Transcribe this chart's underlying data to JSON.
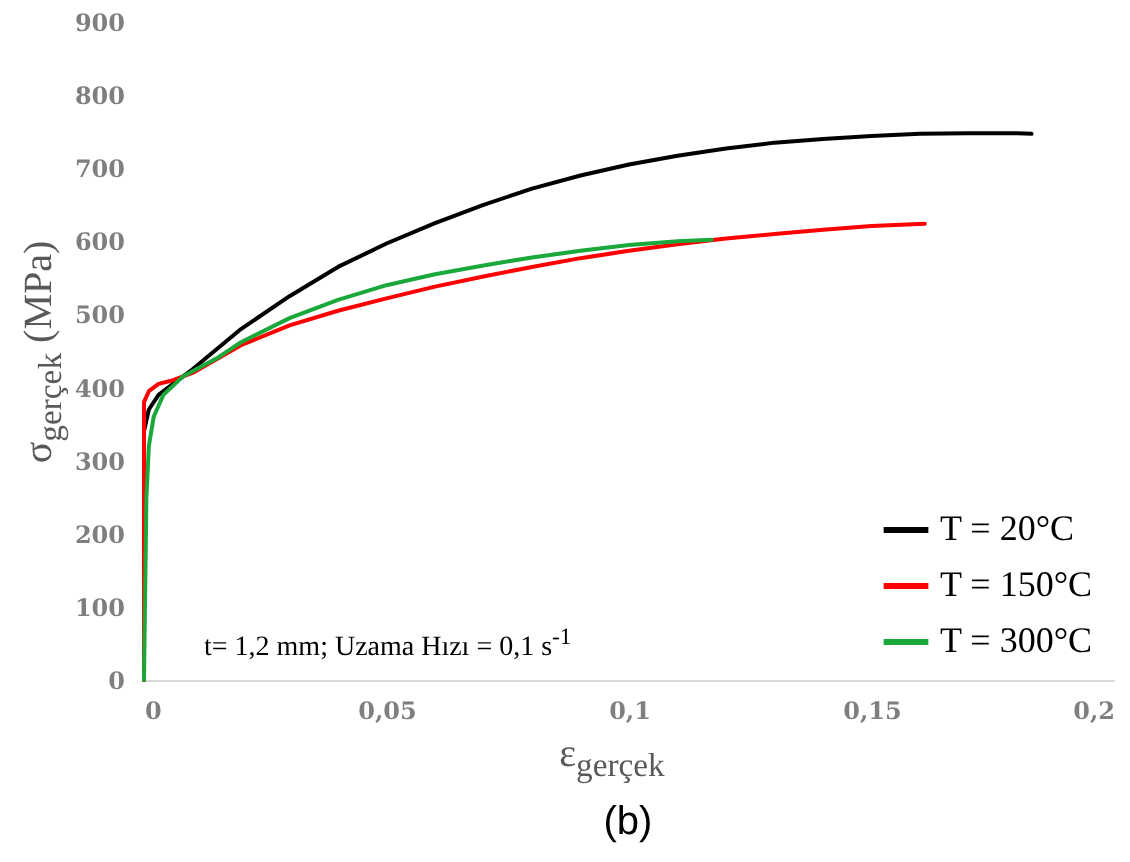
{
  "chart_data": {
    "type": "line",
    "xlabel": "ε$_{gerçek}$",
    "ylabel": "σ$_{gerçek}$ (MPa)",
    "annotations": [
      "t= 1,2 mm; Uzama Hızı = 0,1 s$^{-1}$",
      "(b)"
    ],
    "xlim": [
      0,
      0.2
    ],
    "xticks": [
      0,
      {
        "value": 0.05,
        "label": "0,05"
      },
      {
        "value": 0.1,
        "label": "0,1"
      },
      {
        "value": 0.15,
        "label": "0,15"
      },
      {
        "value": 0.2,
        "label": "0,2"
      }
    ],
    "ylim": [
      0,
      900
    ],
    "yticks": [
      0,
      100,
      200,
      300,
      400,
      500,
      600,
      700,
      800,
      900
    ],
    "grid": false,
    "legend": "bottom right",
    "marker": "none",
    "line_style": "solid",
    "series": [
      {
        "name": "T =   20°C",
        "color": "#000000",
        "x": [
          0,
          0,
          0.001,
          0.003,
          0.006,
          0.01,
          0.02,
          0.03,
          0.04,
          0.05,
          0.06,
          0.07,
          0.08,
          0.09,
          0.1,
          0.11,
          0.12,
          0.13,
          0.14,
          0.15,
          0.16,
          0.17,
          0.18,
          0.183
        ],
        "values": [
          0,
          340,
          370,
          390,
          405,
          425,
          480,
          525,
          565,
          597,
          625,
          650,
          672,
          690,
          705,
          717,
          727,
          735,
          740,
          744,
          747,
          748,
          748,
          747
        ]
      },
      {
        "name": "T = 150°C",
        "color": "#ff0000",
        "x": [
          0,
          0,
          0.001,
          0.003,
          0.006,
          0.01,
          0.02,
          0.03,
          0.04,
          0.05,
          0.06,
          0.07,
          0.08,
          0.09,
          0.1,
          0.11,
          0.12,
          0.13,
          0.14,
          0.15,
          0.161
        ],
        "values": [
          0,
          380,
          395,
          405,
          410,
          420,
          458,
          485,
          505,
          522,
          538,
          552,
          565,
          577,
          587,
          596,
          604,
          610,
          616,
          621,
          624
        ]
      },
      {
        "name": "T = 300°C",
        "color": "#1aa83a",
        "x": [
          0,
          0.0005,
          0.001,
          0.002,
          0.004,
          0.008,
          0.015,
          0.02,
          0.03,
          0.04,
          0.05,
          0.06,
          0.07,
          0.08,
          0.09,
          0.1,
          0.11,
          0.117
        ],
        "values": [
          0,
          250,
          320,
          360,
          390,
          415,
          440,
          462,
          495,
          520,
          540,
          555,
          567,
          578,
          587,
          595,
          600,
          602
        ]
      }
    ]
  }
}
